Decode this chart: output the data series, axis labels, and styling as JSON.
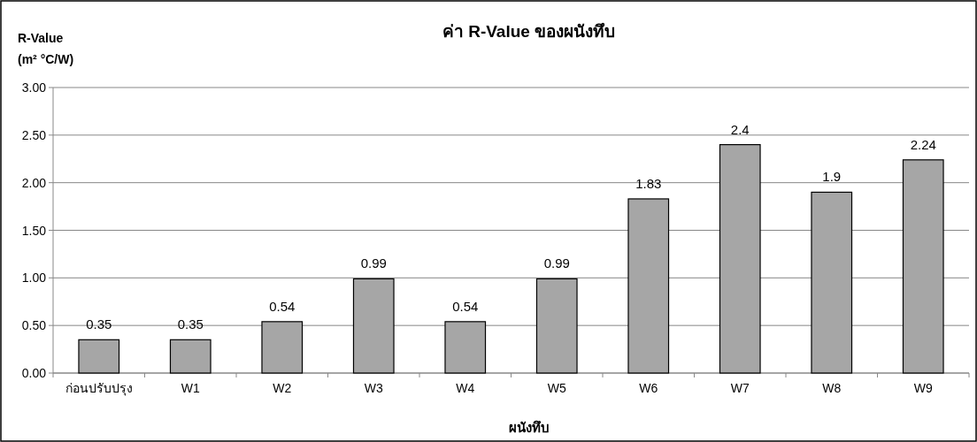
{
  "chart_data": {
    "type": "bar",
    "title": "ค่า R-Value ของผนังทึบ",
    "xlabel": "ผนังทึบ",
    "ylabel": "R-Value\n(m² °C/W)",
    "categories": [
      "ก่อนปรับปรุง",
      "W1",
      "W2",
      "W3",
      "W4",
      "W5",
      "W6",
      "W7",
      "W8",
      "W9"
    ],
    "values": [
      0.35,
      0.35,
      0.54,
      0.99,
      0.54,
      0.99,
      1.83,
      2.4,
      1.9,
      2.24
    ],
    "color": "#a6a6a6",
    "ylim": [
      0,
      3
    ],
    "yticks": [
      {
        "value": 0,
        "label": "0.00"
      },
      {
        "value": 0.5,
        "label": "0.50"
      },
      {
        "value": 1,
        "label": "1.00"
      },
      {
        "value": 1.5,
        "label": "1.50"
      },
      {
        "value": 2,
        "label": "2.00"
      },
      {
        "value": 2.5,
        "label": "2.50"
      },
      {
        "value": 3,
        "label": "3.00"
      }
    ],
    "grid": "y",
    "data_labels": true
  }
}
